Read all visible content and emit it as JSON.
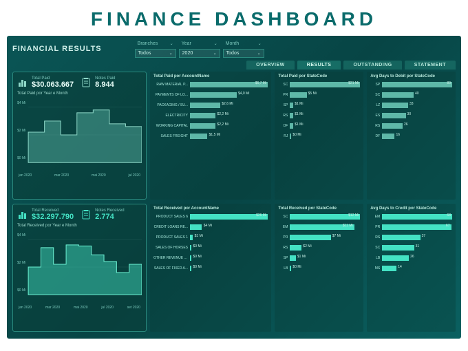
{
  "title": "FINANCE DASHBOARD",
  "section_title": "FINANCIAL RESULTS",
  "filters": {
    "branches": {
      "label": "Branches",
      "value": "Todos"
    },
    "year": {
      "label": "Year",
      "value": "2020"
    },
    "month": {
      "label": "Month",
      "value": "Todos"
    }
  },
  "tabs": [
    "OVERVIEW",
    "RESULTS",
    "OUTSTANDING",
    "STATEMENT"
  ],
  "active_tab": 1,
  "colors": {
    "bar_teal": "#5eb8a8",
    "bar_green": "#44e2c4",
    "area_teal": "rgba(94,184,168,0.45)",
    "area_green": "rgba(68,226,196,0.45)",
    "line_teal": "#8ed8c8",
    "line_green": "#6ef2d4"
  },
  "paid": {
    "total_label": "Total Paid",
    "total_value": "$30.063.667",
    "notes_label": "Notes Paid",
    "notes_value": "8.944",
    "chart_title": "Total Paid por Year e Month",
    "y_ticks": [
      "$4 Mi",
      "$2 Mi",
      "$0 Mi"
    ],
    "x_ticks": [
      "jan 2020",
      "mar 2020",
      "mai 2020",
      "jul 2020"
    ],
    "series": [
      0.55,
      0.75,
      0.5,
      0.9,
      0.95,
      0.7,
      0.65
    ]
  },
  "received": {
    "total_label": "Total Received",
    "total_value": "$32.297.790",
    "notes_label": "Notes Received",
    "notes_value": "2.774",
    "chart_title": "Total Received por Year e Month",
    "y_ticks": [
      "$4 Mi",
      "$2 Mi",
      "$0 Mi"
    ],
    "x_ticks": [
      "jan 2020",
      "mar 2020",
      "mai 2020",
      "jul 2020",
      "set 2020"
    ],
    "series": [
      0.5,
      0.85,
      0.55,
      0.9,
      0.88,
      0.72,
      0.6,
      0.4,
      0.55
    ]
  },
  "paid_account": {
    "title": "Total Paid por AccountName",
    "max": 6.7,
    "rows": [
      {
        "label": "RAW MATERIAL P...",
        "val": 6.7,
        "txt": "$6,7 Mi"
      },
      {
        "label": "PAYMENTS OF LO...",
        "val": 4.0,
        "txt": "$4,0 Mi"
      },
      {
        "label": "PACKAGING / SU...",
        "val": 2.6,
        "txt": "$2,6 Mi"
      },
      {
        "label": "ELECTRICITY",
        "val": 2.2,
        "txt": "$2,2 Mi"
      },
      {
        "label": "WORKING CAPITAL",
        "val": 2.2,
        "txt": "$2,2 Mi"
      },
      {
        "label": "SALES FREIGHT",
        "val": 1.5,
        "txt": "$1,5 Mi"
      }
    ]
  },
  "paid_state": {
    "title": "Total Paid por StateCode",
    "max": 21,
    "rows": [
      {
        "label": "SC",
        "val": 21,
        "txt": "$21 Mi"
      },
      {
        "label": "PR",
        "val": 5,
        "txt": "$5 Mi"
      },
      {
        "label": "SP",
        "val": 1,
        "txt": "$1 Mi"
      },
      {
        "label": "RS",
        "val": 1,
        "txt": "$1 Mi"
      },
      {
        "label": "DF",
        "val": 1,
        "txt": "$1 Mi"
      },
      {
        "label": "RJ",
        "val": 0,
        "txt": "$0 Mi"
      }
    ]
  },
  "days_debit": {
    "title": "Avg Days to Debit por StateCode",
    "max": 89,
    "rows": [
      {
        "label": "SP",
        "val": 89,
        "txt": "89"
      },
      {
        "label": "SC",
        "val": 40,
        "txt": "40"
      },
      {
        "label": "LZ",
        "val": 33,
        "txt": "33"
      },
      {
        "label": "ES",
        "val": 30,
        "txt": "30"
      },
      {
        "label": "RS",
        "val": 26,
        "txt": "26"
      },
      {
        "label": "DF",
        "val": 16,
        "txt": "16"
      }
    ]
  },
  "recv_account": {
    "title": "Total Received por AccountName",
    "max": 26,
    "rows": [
      {
        "label": "PRODUCT SALES 6",
        "val": 26,
        "txt": "$26 Mi"
      },
      {
        "label": "CREDIT LOANS RE...",
        "val": 4,
        "txt": "$4 Mi"
      },
      {
        "label": "PRODUCT SALES 1",
        "val": 1,
        "txt": "$1 Mi"
      },
      {
        "label": "SALES OF HORSES",
        "val": 0,
        "txt": "$0 Mi"
      },
      {
        "label": "OTHER REVENUE A...",
        "val": 0,
        "txt": "$0 Mi"
      },
      {
        "label": "SALES OF FIXED A...",
        "val": 0,
        "txt": "$0 Mi"
      }
    ]
  },
  "recv_state": {
    "title": "Total Received por StateCode",
    "max": 12,
    "rows": [
      {
        "label": "SC",
        "val": 12,
        "txt": "$12 Mi"
      },
      {
        "label": "EM",
        "val": 11,
        "txt": "$11 Mi"
      },
      {
        "label": "PR",
        "val": 7,
        "txt": "$7 Mi"
      },
      {
        "label": "RS",
        "val": 2,
        "txt": "$2 Mi"
      },
      {
        "label": "SP",
        "val": 1,
        "txt": "$1 Mi"
      },
      {
        "label": "LB",
        "val": 0,
        "txt": "$0 Mi"
      }
    ]
  },
  "days_credit": {
    "title": "Avg Days to Credit por StateCode",
    "max": 68,
    "rows": [
      {
        "label": "EM",
        "val": 68,
        "txt": "68"
      },
      {
        "label": "PR",
        "val": 67,
        "txt": "67"
      },
      {
        "label": "RS",
        "val": 37,
        "txt": "37"
      },
      {
        "label": "SC",
        "val": 31,
        "txt": "31"
      },
      {
        "label": "LB",
        "val": 26,
        "txt": "26"
      },
      {
        "label": "MS",
        "val": 14,
        "txt": "14"
      }
    ]
  }
}
